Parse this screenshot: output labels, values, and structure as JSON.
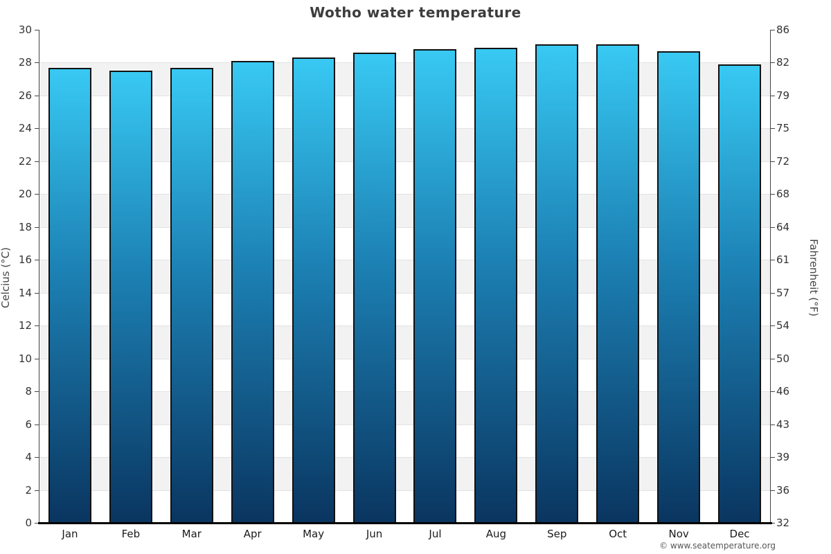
{
  "footer": {
    "copyright": "© www.seatemperature.org"
  },
  "chart_data": {
    "type": "bar",
    "title": "Wotho water temperature",
    "categories": [
      "Jan",
      "Feb",
      "Mar",
      "Apr",
      "May",
      "Jun",
      "Jul",
      "Aug",
      "Sep",
      "Oct",
      "Nov",
      "Dec"
    ],
    "values": [
      27.7,
      27.5,
      27.7,
      28.1,
      28.3,
      28.6,
      28.8,
      28.9,
      29.1,
      29.1,
      28.7,
      27.9
    ],
    "xlabel": "",
    "ylabel_left": "Celcius (°C)",
    "ylabel_right": "Fahrenheit (°F)",
    "ylim": [
      0,
      30
    ],
    "yticks_left": [
      0,
      2,
      4,
      6,
      8,
      10,
      12,
      14,
      16,
      18,
      20,
      22,
      24,
      26,
      28,
      30
    ],
    "yticks_right": [
      "32",
      "36",
      "39",
      "43",
      "46",
      "50",
      "54",
      "57",
      "61",
      "64",
      "68",
      "72",
      "75",
      "79",
      "82",
      "86"
    ],
    "legend": "none",
    "grid": "alternating horizontal bands every 2°C",
    "colors": {
      "bar_top": "#38c9f3",
      "bar_mid": "#1c80b3",
      "bar_bottom": "#0a3560",
      "bar_border": "#111111",
      "band_light": "#ffffff",
      "band_dark": "#f2f2f2",
      "gridline": "#e2e2e2",
      "title_color": "#3d3d3d",
      "axis_color": "#444444",
      "tick_label_color": "#333333"
    }
  }
}
